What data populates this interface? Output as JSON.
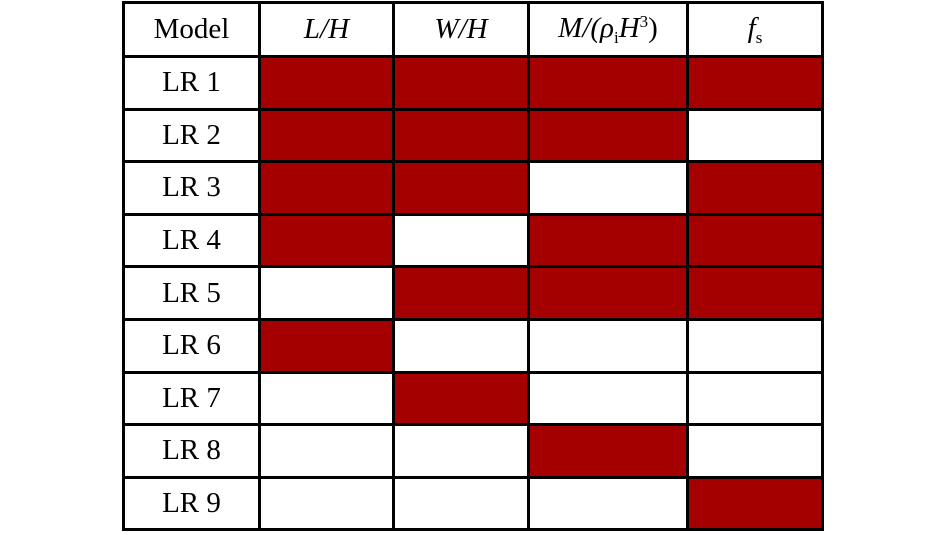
{
  "header": {
    "columns": [
      [
        "Model"
      ],
      [
        "L/H"
      ],
      [
        "W/H"
      ],
      [
        "M/(ρ",
        "i",
        "H",
        "3",
        ")"
      ],
      [
        "f",
        "s"
      ]
    ]
  },
  "fill_color": "#a50000",
  "rows": [
    {
      "label": "LR 1",
      "cells": [
        true,
        true,
        true,
        true
      ]
    },
    {
      "label": "LR 2",
      "cells": [
        true,
        true,
        true,
        false
      ]
    },
    {
      "label": "LR 3",
      "cells": [
        true,
        true,
        false,
        true
      ]
    },
    {
      "label": "LR 4",
      "cells": [
        true,
        false,
        true,
        true
      ]
    },
    {
      "label": "LR 5",
      "cells": [
        false,
        true,
        true,
        true
      ]
    },
    {
      "label": "LR 6",
      "cells": [
        true,
        false,
        false,
        false
      ]
    },
    {
      "label": "LR 7",
      "cells": [
        false,
        true,
        false,
        false
      ]
    },
    {
      "label": "LR 8",
      "cells": [
        false,
        false,
        true,
        false
      ]
    },
    {
      "label": "LR 9",
      "cells": [
        false,
        false,
        false,
        true
      ]
    }
  ]
}
